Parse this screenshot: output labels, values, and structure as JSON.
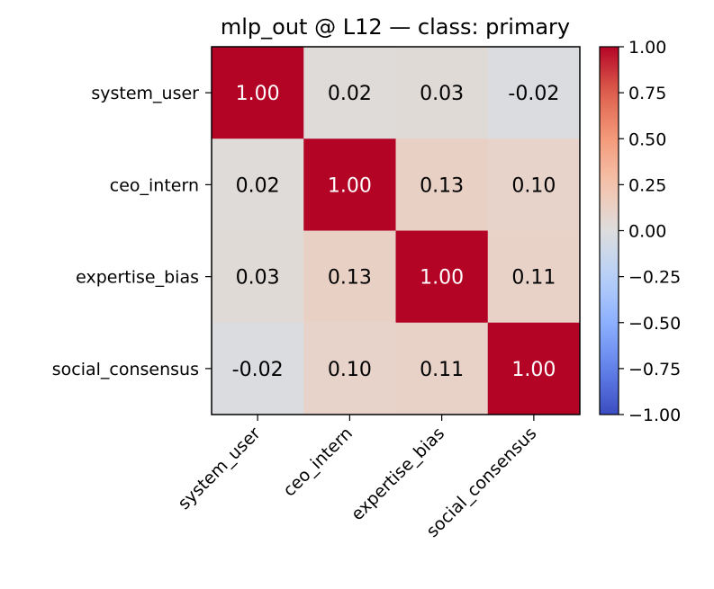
{
  "chart_data": {
    "type": "heatmap",
    "title": "mlp_out @ L12 — class: primary",
    "rows": [
      "system_user",
      "ceo_intern",
      "expertise_bias",
      "social_consensus"
    ],
    "columns": [
      "system_user",
      "ceo_intern",
      "expertise_bias",
      "social_consensus"
    ],
    "values": [
      [
        1.0,
        0.02,
        0.03,
        -0.02
      ],
      [
        0.02,
        1.0,
        0.13,
        0.1
      ],
      [
        0.03,
        0.13,
        1.0,
        0.11
      ],
      [
        -0.02,
        0.1,
        0.11,
        1.0
      ]
    ],
    "value_labels": [
      [
        "1.00",
        "0.02",
        "0.03",
        "-0.02"
      ],
      [
        "0.02",
        "1.00",
        "0.13",
        "0.10"
      ],
      [
        "0.03",
        "0.13",
        "1.00",
        "0.11"
      ],
      [
        "-0.02",
        "0.10",
        "0.11",
        "1.00"
      ]
    ],
    "colorbar": {
      "colormap": "coolwarm",
      "vmin": -1.0,
      "vmax": 1.0,
      "ticks": [
        1.0,
        0.75,
        0.5,
        0.25,
        0.0,
        -0.25,
        -0.5,
        -0.75,
        -1.0
      ],
      "tick_labels": [
        "1.00",
        "0.75",
        "0.50",
        "0.25",
        "0.00",
        "−0.25",
        "−0.50",
        "−0.75",
        "−1.00"
      ]
    },
    "text_colors": {
      "dark": "#000000",
      "light": "#ffffff"
    }
  }
}
